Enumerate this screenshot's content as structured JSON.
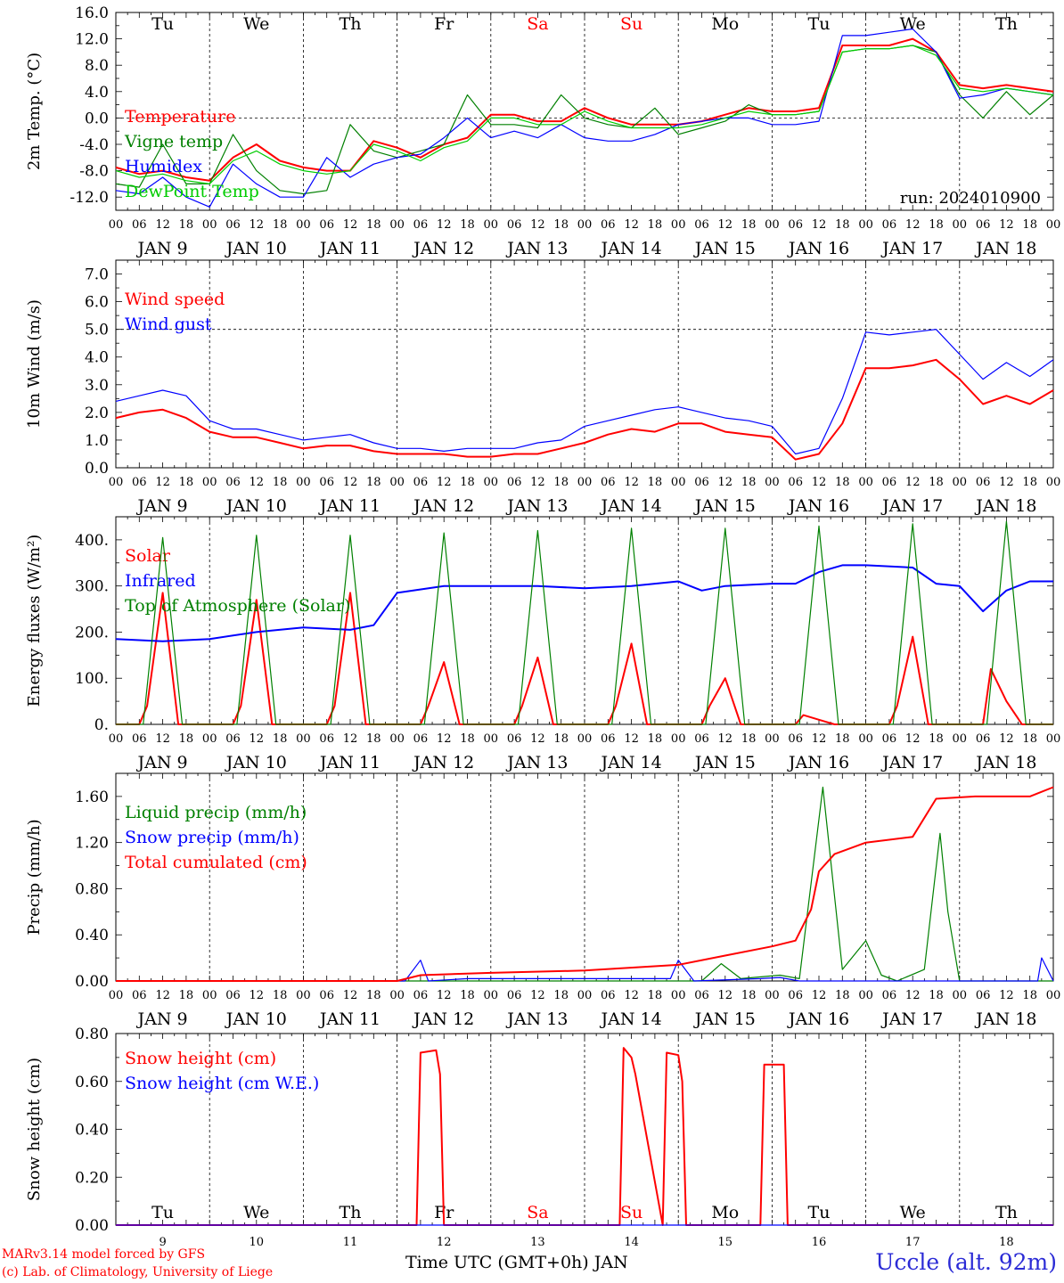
{
  "run_label": "run: 2024010900",
  "footer": {
    "model": "MARv3.14 model forced by GFS",
    "lab": "(c) Lab. of Climatology, University of Liege",
    "axis_title": "Time UTC (GMT+0h) JAN",
    "station": "Uccle (alt. 92m)"
  },
  "days": [
    {
      "weekday": "Tu",
      "date": "JAN  9",
      "num": "9",
      "weekend": false
    },
    {
      "weekday": "We",
      "date": "JAN 10",
      "num": "10",
      "weekend": false
    },
    {
      "weekday": "Th",
      "date": "JAN 11",
      "num": "11",
      "weekend": false
    },
    {
      "weekday": "Fr",
      "date": "JAN 12",
      "num": "12",
      "weekend": false
    },
    {
      "weekday": "Sa",
      "date": "JAN 13",
      "num": "13",
      "weekend": true
    },
    {
      "weekday": "Su",
      "date": "JAN 14",
      "num": "14",
      "weekend": true
    },
    {
      "weekday": "Mo",
      "date": "JAN 15",
      "num": "15",
      "weekend": false
    },
    {
      "weekday": "Tu",
      "date": "JAN 16",
      "num": "16",
      "weekend": false
    },
    {
      "weekday": "We",
      "date": "JAN 17",
      "num": "17",
      "weekend": false
    },
    {
      "weekday": "Th",
      "date": "JAN 18",
      "num": "18",
      "weekend": false
    }
  ],
  "hour_ticks": [
    "00",
    "06",
    "12",
    "18"
  ],
  "end_tick": "00",
  "colors": {
    "red": "#ff0000",
    "green": "#008000",
    "blue": "#0000ff",
    "lime": "#00cc00",
    "weekend": "#ff0000"
  },
  "chart_data": [
    {
      "type": "line",
      "ylabel": "2m Temp. (°C)",
      "ylim": [
        -14,
        16
      ],
      "yticks": [
        -12,
        -8,
        -4,
        0,
        4,
        8,
        12,
        16
      ],
      "ytick_labels": [
        "-12.0",
        "-8.0",
        "-4.0",
        "0.0",
        "4.0",
        "8.0",
        "12.0",
        "16.0"
      ],
      "ref_line": 0,
      "x_unit": "hours since JAN 9 00 UTC",
      "series": [
        {
          "name": "Temperature",
          "color": "red",
          "x": [
            0,
            6,
            12,
            18,
            24,
            30,
            36,
            42,
            48,
            54,
            60,
            66,
            72,
            78,
            84,
            90,
            96,
            102,
            108,
            114,
            120,
            126,
            132,
            138,
            144,
            150,
            156,
            162,
            168,
            174,
            180,
            186,
            192,
            198,
            204,
            210,
            216,
            222,
            228,
            234,
            240
          ],
          "y": [
            -7.5,
            -8.5,
            -8,
            -9,
            -9.5,
            -6,
            -4,
            -6.5,
            -7.5,
            -8,
            -8,
            -3.5,
            -4.5,
            -6,
            -4,
            -3,
            0.5,
            0.5,
            -0.5,
            -0.5,
            1.5,
            0,
            -1,
            -1,
            -1,
            -0.5,
            0.5,
            1.5,
            1,
            1,
            1.5,
            11,
            11,
            11,
            12,
            10,
            5,
            4.5,
            5,
            4.5,
            4
          ]
        },
        {
          "name": "Vigne temp",
          "color": "green",
          "x": [
            0,
            6,
            12,
            18,
            24,
            30,
            36,
            42,
            48,
            54,
            60,
            66,
            72,
            78,
            84,
            90,
            96,
            102,
            108,
            114,
            120,
            126,
            132,
            138,
            144,
            150,
            156,
            162,
            168,
            174,
            180,
            186,
            192,
            198,
            204,
            210,
            216,
            222,
            228,
            234,
            240
          ],
          "y": [
            -10,
            -10.5,
            -4,
            -10,
            -10,
            -2.5,
            -8,
            -11,
            -11.5,
            -11,
            -1,
            -5,
            -6,
            -5,
            -4,
            3.5,
            -1,
            -1,
            -1.5,
            3.5,
            0,
            -1,
            -1.5,
            1.5,
            -2.5,
            -1.5,
            -0.5,
            2,
            0.5,
            0.5,
            1,
            10,
            10.5,
            10.5,
            11,
            10,
            3.5,
            0,
            4,
            0.5,
            3.5
          ]
        },
        {
          "name": "Humidex",
          "color": "blue",
          "x": [
            0,
            6,
            12,
            18,
            24,
            30,
            36,
            42,
            48,
            54,
            60,
            66,
            72,
            78,
            84,
            90,
            96,
            102,
            108,
            114,
            120,
            126,
            132,
            138,
            144,
            150,
            156,
            162,
            168,
            174,
            180,
            186,
            192,
            198,
            204,
            210,
            216,
            222,
            228,
            234,
            240
          ],
          "y": [
            -11,
            -11.5,
            -9,
            -12,
            -13.5,
            -7,
            -10,
            -12,
            -12,
            -6,
            -9,
            -7,
            -6,
            -5.5,
            -3,
            0,
            -3,
            -2,
            -3,
            -1,
            -3,
            -3.5,
            -3.5,
            -2.5,
            -1,
            -0.5,
            0,
            0,
            -1,
            -1,
            -0.5,
            12.5,
            12.5,
            13,
            13.5,
            10,
            3,
            3.5,
            4.5,
            4,
            3.5
          ]
        },
        {
          "name": "DewPoint Temp",
          "color": "lime",
          "x": [
            0,
            6,
            12,
            18,
            24,
            30,
            36,
            42,
            48,
            54,
            60,
            66,
            72,
            78,
            84,
            90,
            96,
            102,
            108,
            114,
            120,
            126,
            132,
            138,
            144,
            150,
            156,
            162,
            168,
            174,
            180,
            186,
            192,
            198,
            204,
            210,
            216,
            222,
            228,
            234,
            240
          ],
          "y": [
            -8,
            -9,
            -8.5,
            -9.5,
            -10,
            -6.5,
            -5,
            -7,
            -8,
            -8.5,
            -8,
            -4,
            -5,
            -6.5,
            -4.5,
            -3.5,
            0,
            0,
            -1,
            -1,
            1,
            -0.5,
            -1.5,
            -1.5,
            -1.5,
            -1,
            0,
            1,
            0.5,
            0.5,
            1,
            10,
            10.5,
            10.5,
            11,
            9.5,
            4.5,
            4,
            4.5,
            4,
            3.5
          ]
        }
      ]
    },
    {
      "type": "line",
      "ylabel": "10m Wind (m/s)",
      "ylim": [
        0,
        7.5
      ],
      "yticks": [
        0,
        1,
        2,
        3,
        4,
        5,
        6,
        7
      ],
      "ytick_labels": [
        "0.0",
        "1.0",
        "2.0",
        "3.0",
        "4.0",
        "5.0",
        "6.0",
        "7.0"
      ],
      "ref_line": 5,
      "x_unit": "hours since JAN 9 00 UTC",
      "series": [
        {
          "name": "Wind speed",
          "color": "red",
          "x": [
            0,
            6,
            12,
            18,
            24,
            30,
            36,
            42,
            48,
            54,
            60,
            66,
            72,
            78,
            84,
            90,
            96,
            102,
            108,
            114,
            120,
            126,
            132,
            138,
            144,
            150,
            156,
            162,
            168,
            174,
            180,
            186,
            192,
            198,
            204,
            210,
            216,
            222,
            228,
            234,
            240
          ],
          "y": [
            1.8,
            2,
            2.1,
            1.8,
            1.3,
            1.1,
            1.1,
            0.9,
            0.7,
            0.8,
            0.8,
            0.6,
            0.5,
            0.5,
            0.5,
            0.4,
            0.4,
            0.5,
            0.5,
            0.7,
            0.9,
            1.2,
            1.4,
            1.3,
            1.6,
            1.6,
            1.3,
            1.2,
            1.1,
            0.3,
            0.5,
            1.6,
            3.6,
            3.6,
            3.7,
            3.9,
            3.2,
            2.3,
            2.6,
            2.3,
            2.8
          ]
        },
        {
          "name": "Wind gust",
          "color": "blue",
          "x": [
            0,
            6,
            12,
            18,
            24,
            30,
            36,
            42,
            48,
            54,
            60,
            66,
            72,
            78,
            84,
            90,
            96,
            102,
            108,
            114,
            120,
            126,
            132,
            138,
            144,
            150,
            156,
            162,
            168,
            174,
            180,
            186,
            192,
            198,
            204,
            210,
            216,
            222,
            228,
            234,
            240
          ],
          "y": [
            2.4,
            2.6,
            2.8,
            2.6,
            1.7,
            1.4,
            1.4,
            1.2,
            1,
            1.1,
            1.2,
            0.9,
            0.7,
            0.7,
            0.6,
            0.7,
            0.7,
            0.7,
            0.9,
            1,
            1.5,
            1.7,
            1.9,
            2.1,
            2.2,
            2,
            1.8,
            1.7,
            1.5,
            0.5,
            0.7,
            2.5,
            4.9,
            4.8,
            4.9,
            5,
            4.1,
            3.2,
            3.8,
            3.3,
            3.9
          ]
        }
      ]
    },
    {
      "type": "line",
      "ylabel": "Energy fluxes (W/m²)",
      "ylim": [
        0,
        450
      ],
      "yticks": [
        0,
        100,
        200,
        300,
        400
      ],
      "ytick_labels": [
        "0.",
        "100.",
        "200.",
        "300.",
        "400."
      ],
      "x_unit": "hours since JAN 9 00 UTC",
      "series": [
        {
          "name": "Solar",
          "color": "red",
          "x": [
            0,
            6,
            8,
            12,
            16,
            30,
            32,
            36,
            40,
            54,
            56,
            60,
            64,
            78,
            80,
            84,
            88,
            102,
            104,
            108,
            112,
            126,
            128,
            132,
            136,
            150,
            152,
            156,
            160,
            174,
            176,
            180,
            184,
            198,
            200,
            204,
            208,
            222,
            224,
            228,
            232,
            240
          ],
          "y": [
            0,
            0,
            40,
            285,
            0,
            0,
            40,
            270,
            0,
            0,
            40,
            285,
            0,
            0,
            40,
            135,
            0,
            0,
            40,
            145,
            0,
            0,
            40,
            175,
            0,
            0,
            40,
            100,
            0,
            0,
            20,
            10,
            0,
            0,
            40,
            190,
            0,
            0,
            120,
            50,
            0,
            0
          ]
        },
        {
          "name": "Infrared",
          "color": "blue",
          "x": [
            0,
            12,
            24,
            36,
            48,
            60,
            66,
            72,
            84,
            96,
            108,
            120,
            132,
            144,
            150,
            156,
            168,
            174,
            180,
            186,
            192,
            204,
            210,
            216,
            222,
            228,
            234,
            240
          ],
          "y": [
            185,
            180,
            185,
            200,
            210,
            205,
            215,
            285,
            300,
            300,
            300,
            295,
            300,
            310,
            290,
            300,
            305,
            305,
            330,
            345,
            345,
            340,
            305,
            300,
            245,
            290,
            310,
            310
          ]
        },
        {
          "name": "Top of Atmosphere (Solar)",
          "color": "green",
          "x": [
            0,
            7,
            12,
            17,
            31,
            36,
            41,
            55,
            60,
            65,
            79,
            84,
            89,
            103,
            108,
            113,
            127,
            132,
            137,
            151,
            156,
            161,
            175,
            180,
            185,
            199,
            204,
            209,
            223,
            228,
            233,
            240
          ],
          "y": [
            0,
            0,
            405,
            0,
            0,
            410,
            0,
            0,
            410,
            0,
            0,
            415,
            0,
            0,
            420,
            0,
            0,
            425,
            0,
            0,
            425,
            0,
            0,
            430,
            0,
            0,
            435,
            0,
            0,
            440,
            0,
            0
          ]
        }
      ]
    },
    {
      "type": "line",
      "ylabel": "Precip (mm/h)",
      "ylim": [
        0,
        1.8
      ],
      "yticks": [
        0,
        0.4,
        0.8,
        1.2,
        1.6
      ],
      "ytick_labels": [
        "0.00",
        "0.40",
        "0.80",
        "1.20",
        "1.60"
      ],
      "x_unit": "hours since JAN 9 00 UTC",
      "series": [
        {
          "name": "Liquid precip (mm/h)",
          "color": "green",
          "x": [
            0,
            150,
            155,
            160,
            170,
            175,
            181,
            186,
            192,
            196,
            200,
            207,
            211,
            213,
            216,
            240
          ],
          "y": [
            0,
            0,
            0.15,
            0.02,
            0.05,
            0.02,
            1.68,
            0.1,
            0.35,
            0.05,
            0,
            0.1,
            1.28,
            0.6,
            0,
            0
          ]
        },
        {
          "name": "Snow precip (mm/h)",
          "color": "blue",
          "x": [
            0,
            74,
            78,
            80,
            90,
            130,
            142,
            144,
            148,
            165,
            170,
            175,
            236,
            237,
            240
          ],
          "y": [
            0,
            0,
            0.18,
            0,
            0.02,
            0.02,
            0.02,
            0.18,
            0,
            0.02,
            0.03,
            0,
            0,
            0.2,
            0
          ]
        },
        {
          "name": "Total cumulated (cm)",
          "color": "red",
          "x": [
            0,
            72,
            78,
            96,
            120,
            144,
            156,
            168,
            174,
            178,
            180,
            184,
            192,
            204,
            210,
            220,
            228,
            234,
            240
          ],
          "y": [
            0,
            0,
            0.05,
            0.07,
            0.09,
            0.14,
            0.22,
            0.3,
            0.35,
            0.62,
            0.95,
            1.1,
            1.2,
            1.25,
            1.58,
            1.6,
            1.6,
            1.6,
            1.68
          ]
        }
      ]
    },
    {
      "type": "line",
      "ylabel": "Snow height (cm)",
      "ylim": [
        0,
        0.8
      ],
      "yticks": [
        0,
        0.2,
        0.4,
        0.6,
        0.8
      ],
      "ytick_labels": [
        "0.00",
        "0.20",
        "0.40",
        "0.60",
        "0.80"
      ],
      "x_unit": "hours since JAN 9 00 UTC",
      "series": [
        {
          "name": "Snow height (cm)",
          "color": "red",
          "x": [
            0,
            77,
            78,
            82,
            83,
            84,
            129,
            130,
            132,
            133,
            140,
            141,
            144,
            145,
            146,
            165,
            166,
            171,
            172,
            240
          ],
          "y": [
            0,
            0,
            0.72,
            0.73,
            0.63,
            0,
            0,
            0.74,
            0.7,
            0.63,
            0,
            0.72,
            0.71,
            0.6,
            0,
            0,
            0.67,
            0.67,
            0,
            0
          ]
        },
        {
          "name": "Snow height (cm W.E.)",
          "color": "blue",
          "x": [
            0,
            240
          ],
          "y": [
            0,
            0
          ]
        }
      ]
    }
  ]
}
